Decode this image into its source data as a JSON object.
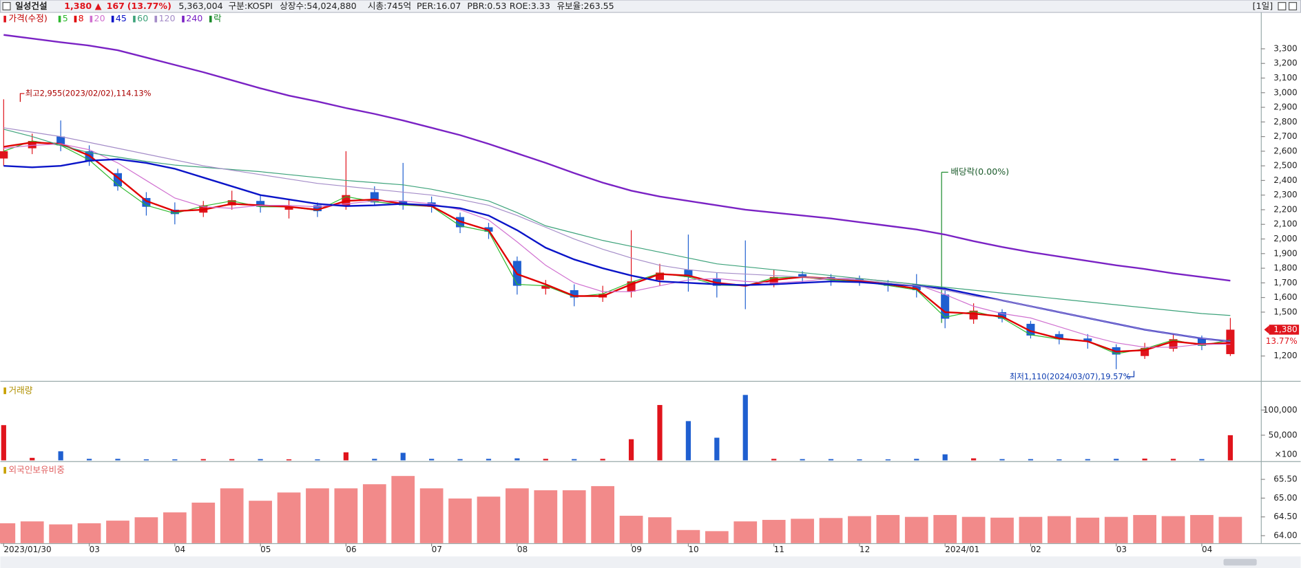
{
  "header": {
    "name": "일성건설",
    "price": "1,380",
    "arrow": "▲",
    "change": "167",
    "change_pct": "(13.77%)",
    "volume": "5,363,004",
    "market": "구분:KOSPI",
    "listed": "상장수:54,024,880",
    "cap": "시총:745억",
    "per": "PER:16.07",
    "pbr": "PBR:0.53",
    "roe": "ROE:3.33",
    "reserve": "유보율:263.55",
    "period": "[1일]"
  },
  "chart_data": [
    {
      "type": "candlestick",
      "legend_title": "가격(수정)",
      "up_color": "#e0141c",
      "down_color": "#1f5fd0",
      "open": [
        2550,
        2620,
        2700,
        2600,
        2450,
        2280,
        2200,
        2180,
        2230,
        2260,
        2200,
        2230,
        2230,
        2320,
        2260,
        2250,
        2150,
        2080,
        1850,
        1660,
        1650,
        1600,
        1640,
        1720,
        1790,
        1730,
        1690,
        1690,
        1760,
        1740,
        1730,
        1700,
        1690,
        1620,
        1450,
        1500,
        1420,
        1350,
        1320,
        1260,
        1200,
        1250,
        1320,
        1213
      ],
      "high": [
        2955,
        2720,
        2810,
        2640,
        2480,
        2320,
        2250,
        2260,
        2330,
        2300,
        2270,
        2250,
        2600,
        2360,
        2520,
        2290,
        2180,
        2110,
        1880,
        1720,
        1690,
        1680,
        2060,
        1830,
        2030,
        1770,
        1990,
        1790,
        1780,
        1760,
        1750,
        1720,
        1760,
        1650,
        1560,
        1520,
        1440,
        1370,
        1350,
        1280,
        1290,
        1350,
        1340,
        1460
      ],
      "low": [
        2500,
        2580,
        2600,
        2500,
        2330,
        2160,
        2100,
        2150,
        2200,
        2180,
        2140,
        2150,
        2200,
        2230,
        2200,
        2180,
        2040,
        2000,
        1620,
        1620,
        1540,
        1570,
        1600,
        1680,
        1640,
        1600,
        1520,
        1670,
        1700,
        1680,
        1680,
        1640,
        1600,
        1390,
        1420,
        1430,
        1320,
        1280,
        1250,
        1110,
        1180,
        1230,
        1240,
        1200
      ],
      "close": [
        2600,
        2670,
        2640,
        2530,
        2360,
        2220,
        2170,
        2230,
        2265,
        2220,
        2220,
        2190,
        2300,
        2250,
        2230,
        2220,
        2080,
        2050,
        1680,
        1680,
        1600,
        1625,
        1710,
        1770,
        1740,
        1680,
        1680,
        1740,
        1740,
        1720,
        1710,
        1680,
        1650,
        1455,
        1510,
        1455,
        1340,
        1315,
        1300,
        1210,
        1255,
        1315,
        1270,
        1380
      ],
      "series": [
        {
          "name": "5",
          "color": "#2db82d",
          "width": 1,
          "values": [
            2600,
            2670,
            2640,
            2540,
            2370,
            2230,
            2175,
            2225,
            2260,
            2220,
            2220,
            2195,
            2290,
            2255,
            2232,
            2222,
            2090,
            2050,
            1690,
            1680,
            1605,
            1625,
            1705,
            1765,
            1740,
            1685,
            1680,
            1735,
            1740,
            1720,
            1710,
            1682,
            1652,
            1465,
            1505,
            1460,
            1345,
            1315,
            1300,
            1215,
            1250,
            1310,
            1272,
            1310
          ]
        },
        {
          "name": "8",
          "color": "#e00000",
          "width": 2,
          "values": [
            2630,
            2660,
            2650,
            2570,
            2420,
            2260,
            2190,
            2200,
            2240,
            2230,
            2220,
            2200,
            2260,
            2270,
            2240,
            2225,
            2120,
            2060,
            1760,
            1690,
            1610,
            1610,
            1690,
            1760,
            1750,
            1700,
            1680,
            1720,
            1740,
            1730,
            1715,
            1690,
            1660,
            1500,
            1490,
            1470,
            1370,
            1320,
            1300,
            1230,
            1240,
            1300,
            1280,
            1290
          ]
        },
        {
          "name": "20",
          "color": "#d070d0",
          "width": 1,
          "values": [
            2620,
            2640,
            2650,
            2610,
            2520,
            2400,
            2280,
            2220,
            2210,
            2230,
            2230,
            2220,
            2240,
            2260,
            2260,
            2240,
            2200,
            2130,
            1980,
            1820,
            1700,
            1640,
            1640,
            1680,
            1720,
            1730,
            1710,
            1700,
            1710,
            1730,
            1730,
            1710,
            1690,
            1620,
            1540,
            1490,
            1460,
            1400,
            1340,
            1290,
            1260,
            1260,
            1280,
            1280
          ]
        },
        {
          "name": "45",
          "color": "#0a14c8",
          "width": 2,
          "values": [
            2500,
            2490,
            2500,
            2535,
            2545,
            2520,
            2480,
            2420,
            2360,
            2300,
            2270,
            2240,
            2225,
            2230,
            2240,
            2230,
            2210,
            2160,
            2060,
            1940,
            1860,
            1800,
            1750,
            1710,
            1700,
            1690,
            1685,
            1690,
            1700,
            1710,
            1705,
            1690,
            1680,
            1660,
            1620,
            1580,
            1540,
            1500,
            1460,
            1420,
            1380,
            1350,
            1320,
            1300
          ]
        },
        {
          "name": "60",
          "color": "#3ca27a",
          "width": 1,
          "values": [
            2750,
            2700,
            2640,
            2590,
            2560,
            2530,
            2505,
            2490,
            2475,
            2460,
            2440,
            2420,
            2400,
            2385,
            2370,
            2340,
            2300,
            2260,
            2180,
            2090,
            2040,
            1990,
            1950,
            1910,
            1870,
            1830,
            1810,
            1790,
            1770,
            1750,
            1730,
            1710,
            1690,
            1670,
            1650,
            1630,
            1610,
            1590,
            1570,
            1550,
            1530,
            1510,
            1490,
            1477
          ]
        },
        {
          "name": "120",
          "color": "#a48cc8",
          "width": 1,
          "values": [
            2760,
            2730,
            2700,
            2660,
            2620,
            2580,
            2540,
            2500,
            2470,
            2440,
            2410,
            2380,
            2360,
            2340,
            2320,
            2300,
            2270,
            2230,
            2160,
            2080,
            2000,
            1930,
            1870,
            1820,
            1790,
            1770,
            1760,
            1750,
            1740,
            1730,
            1720,
            1700,
            1680,
            1650,
            1610,
            1580,
            1540,
            1500,
            1460,
            1420,
            1380,
            1350,
            1320,
            1300
          ]
        },
        {
          "name": "240",
          "color": "#7a22c4",
          "width": 2,
          "values": [
            3395,
            3370,
            3345,
            3322,
            3290,
            3240,
            3190,
            3140,
            3085,
            3030,
            2980,
            2940,
            2895,
            2855,
            2810,
            2760,
            2710,
            2650,
            2585,
            2520,
            2450,
            2385,
            2330,
            2290,
            2260,
            2230,
            2200,
            2180,
            2160,
            2140,
            2115,
            2090,
            2065,
            2030,
            1985,
            1945,
            1910,
            1880,
            1850,
            1820,
            1795,
            1765,
            1740,
            1715
          ]
        }
      ],
      "dividend_legend": "락",
      "dividend_color": "#1a8a2a",
      "ylim": [
        1030,
        3543
      ],
      "yticks": [
        {
          "value": 1200,
          "label": "1,200"
        },
        {
          "value": 1500,
          "label": "1,500"
        },
        {
          "value": 1600,
          "label": "1,600"
        },
        {
          "value": 1700,
          "label": "1,700"
        },
        {
          "value": 1800,
          "label": "1,800"
        },
        {
          "value": 1900,
          "label": "1,900"
        },
        {
          "value": 2000,
          "label": "2,000"
        },
        {
          "value": 2100,
          "label": "2,100"
        },
        {
          "value": 2200,
          "label": "2,200"
        },
        {
          "value": 2300,
          "label": "2,300"
        },
        {
          "value": 2400,
          "label": "2,400"
        },
        {
          "value": 2500,
          "label": "2,500"
        },
        {
          "value": 2600,
          "label": "2,600"
        },
        {
          "value": 2700,
          "label": "2,700"
        },
        {
          "value": 2800,
          "label": "2,800"
        },
        {
          "value": 2900,
          "label": "2,900"
        },
        {
          "value": 3000,
          "label": "3,000"
        },
        {
          "value": 3100,
          "label": "3,100"
        },
        {
          "value": 3200,
          "label": "3,200"
        },
        {
          "value": 3300,
          "label": "3,300"
        }
      ],
      "annotations": {
        "high": "최고2,955(2023/02/02),114.13%",
        "dividend": "배당락(0.00%)",
        "low": "최저1,110(2024/03/07),19.57%",
        "last_price": "1,380",
        "last_change": "13.77%"
      }
    },
    {
      "type": "bar",
      "title": "거래량",
      "unit": "×100",
      "values": [
        70000,
        5000,
        18000,
        3000,
        3000,
        2000,
        2000,
        2500,
        2500,
        2500,
        2000,
        2000,
        16000,
        3000,
        15000,
        3000,
        2500,
        3000,
        4000,
        3000,
        2500,
        3000,
        42000,
        110000,
        78000,
        45000,
        130000,
        3000,
        2500,
        2500,
        2000,
        2000,
        3000,
        12000,
        4000,
        2500,
        2500,
        2000,
        2500,
        3000,
        3500,
        3000,
        2500,
        50000
      ],
      "ylim": [
        0,
        153000
      ],
      "yticks": [
        {
          "value": 50000,
          "label": "50,000"
        },
        {
          "value": 100000,
          "label": "100,000"
        }
      ]
    },
    {
      "type": "bar",
      "title": "외국인보유비중",
      "color": "#f28a8a",
      "categories": [
        "2023/01/30",
        null,
        null,
        "03",
        null,
        null,
        "04",
        null,
        null,
        "05",
        null,
        null,
        "06",
        null,
        null,
        "07",
        null,
        null,
        "08",
        null,
        null,
        null,
        "09",
        null,
        "10",
        null,
        null,
        "11",
        null,
        null,
        "12",
        null,
        null,
        "2024/01",
        null,
        null,
        "02",
        null,
        null,
        "03",
        null,
        null,
        "04",
        null
      ],
      "values": [
        64.33,
        64.38,
        64.3,
        64.33,
        64.4,
        64.49,
        64.62,
        64.88,
        65.26,
        64.93,
        65.15,
        65.26,
        65.26,
        65.37,
        65.59,
        65.26,
        64.99,
        65.04,
        65.26,
        65.21,
        65.21,
        65.32,
        64.53,
        64.49,
        64.15,
        64.12,
        64.38,
        64.42,
        64.45,
        64.47,
        64.52,
        64.55,
        64.5,
        64.55,
        64.5,
        64.48,
        64.5,
        64.52,
        64.48,
        64.5,
        64.55,
        64.52,
        64.55,
        64.5
      ],
      "ylim": [
        63.8,
        65.94
      ],
      "yticks": [
        {
          "value": 64,
          "label": "64.00"
        },
        {
          "value": 64.5,
          "label": "64.50"
        },
        {
          "value": 65,
          "label": "65.00"
        },
        {
          "value": 65.5,
          "label": "65.50"
        }
      ]
    }
  ]
}
